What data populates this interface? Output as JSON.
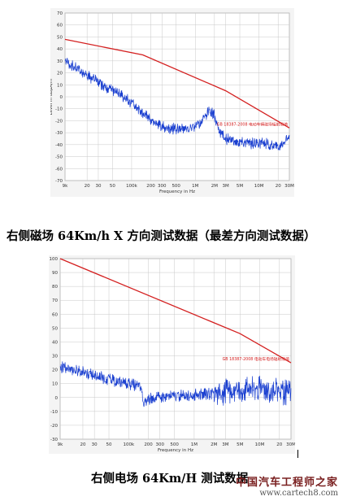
{
  "captions": {
    "chart1": "右侧磁场 64Km/h X 方向测试数据（最差方向测试数据）",
    "chart2": "右侧电场 64Km/H 测试数据"
  },
  "watermark": {
    "line1": "中国汽车工程师之家",
    "line2": "www.cartech8.com"
  },
  "colors": {
    "limit": "#d42020",
    "measurement": "#1a3fd0",
    "grid": "#c8c8c8",
    "background": "#f4f4f4"
  },
  "chart_data": [
    {
      "type": "line",
      "xscale": "log",
      "xlim_hz": [
        9000,
        30000000
      ],
      "ylim": [
        -70,
        70
      ],
      "yticks": [
        70,
        60,
        50,
        40,
        30,
        20,
        10,
        0,
        -10,
        -20,
        -30,
        -40,
        -50,
        -60,
        -70
      ],
      "xticks": [
        {
          "hz": 9000,
          "label": "9k"
        },
        {
          "hz": 20000,
          "label": "20"
        },
        {
          "hz": 30000,
          "label": "30"
        },
        {
          "hz": 50000,
          "label": "50"
        },
        {
          "hz": 100000,
          "label": "100k"
        },
        {
          "hz": 200000,
          "label": "200"
        },
        {
          "hz": 300000,
          "label": "300"
        },
        {
          "hz": 500000,
          "label": "500"
        },
        {
          "hz": 1000000,
          "label": "1M"
        },
        {
          "hz": 2000000,
          "label": "2M"
        },
        {
          "hz": 3000000,
          "label": "3M"
        },
        {
          "hz": 5000000,
          "label": "5M"
        },
        {
          "hz": 10000000,
          "label": "10M"
        },
        {
          "hz": 20000000,
          "label": "20"
        },
        {
          "hz": 30000000,
          "label": "30M"
        }
      ],
      "xlabel": "Frequency in Hz",
      "ylabel": "Level in dBµA/m",
      "limit_label": "GB 18387-2008 电动车辆磁场辐射限值",
      "series": [
        {
          "name": "GB 18387-2008 电动车辆磁场辐射限值",
          "role": "limit",
          "x": [
            9000,
            150000,
            3000000,
            30000000
          ],
          "y": [
            48,
            35,
            5,
            -26
          ]
        },
        {
          "role": "measurement",
          "x": [
            9000,
            15000,
            30000,
            60000,
            100000,
            150000,
            200000,
            300000,
            500000,
            800000,
            1200000,
            1600000,
            1800000,
            2000000,
            2300000,
            3000000,
            5000000,
            8000000,
            12000000,
            20000000,
            30000000
          ],
          "y": [
            30,
            22,
            12,
            3,
            -5,
            -13,
            -20,
            -25,
            -27,
            -27,
            -22,
            -13,
            -12,
            -16,
            -27,
            -35,
            -38,
            -39,
            -38,
            -43,
            -32
          ]
        }
      ]
    },
    {
      "type": "line",
      "xscale": "log",
      "xlim_hz": [
        9000,
        30000000
      ],
      "ylim": [
        -30,
        100
      ],
      "yticks": [
        100,
        90,
        80,
        70,
        60,
        50,
        40,
        30,
        20,
        10,
        0,
        -10,
        -20,
        -30
      ],
      "xticks": [
        {
          "hz": 9000,
          "label": "9k"
        },
        {
          "hz": 20000,
          "label": "20"
        },
        {
          "hz": 30000,
          "label": "30"
        },
        {
          "hz": 50000,
          "label": "50"
        },
        {
          "hz": 100000,
          "label": "100k"
        },
        {
          "hz": 200000,
          "label": "200"
        },
        {
          "hz": 300000,
          "label": "300"
        },
        {
          "hz": 500000,
          "label": "500"
        },
        {
          "hz": 1000000,
          "label": "1M"
        },
        {
          "hz": 2000000,
          "label": "2M"
        },
        {
          "hz": 3000000,
          "label": "3M"
        },
        {
          "hz": 5000000,
          "label": "5M"
        },
        {
          "hz": 10000000,
          "label": "10M"
        },
        {
          "hz": 20000000,
          "label": "20"
        },
        {
          "hz": 30000000,
          "label": "30M"
        }
      ],
      "xlabel": "Frequency in Hz",
      "ylabel": "",
      "limit_label": "GB 18387-2008 电动车电场辐射限值",
      "series": [
        {
          "name": "GB 18387-2008 电动车电场辐射限值",
          "role": "limit",
          "x": [
            9000,
            5000000,
            30000000
          ],
          "y": [
            100,
            46,
            25
          ]
        },
        {
          "role": "measurement",
          "x": [
            9000,
            15000,
            30000,
            60000,
            100000,
            150000,
            170000,
            200000,
            300000,
            500000,
            1000000,
            2000000,
            3000000,
            5000000,
            10000000,
            20000000,
            30000000
          ],
          "y": [
            22,
            20,
            16,
            12,
            10,
            8,
            -5,
            -1,
            0,
            1,
            2,
            3,
            4,
            5,
            6,
            4,
            3
          ]
        }
      ]
    }
  ]
}
